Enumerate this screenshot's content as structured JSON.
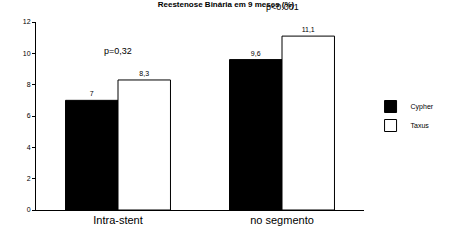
{
  "chart_data": {
    "type": "bar",
    "title": "Reestenose Binária em 9 meses (%)",
    "categories": [
      "Intra-stent",
      "no segmento"
    ],
    "series": [
      {
        "name": "Cypher",
        "color": "#000000",
        "values": [
          7,
          9.6
        ],
        "value_labels": [
          "7",
          "9,6"
        ]
      },
      {
        "name": "Taxus",
        "color": "#ffffff",
        "values": [
          8.3,
          11.1
        ],
        "value_labels": [
          "8,3",
          "11,1"
        ]
      }
    ],
    "annotations": [
      {
        "category": "Intra-stent",
        "text": "p=0,32"
      },
      {
        "category": "no segmento",
        "text": "p<0.001"
      }
    ],
    "ylim": [
      0,
      12
    ],
    "yticks": [
      0,
      2,
      4,
      6,
      8,
      10,
      12
    ],
    "grid": false,
    "legend": "right",
    "data_labels": true
  }
}
